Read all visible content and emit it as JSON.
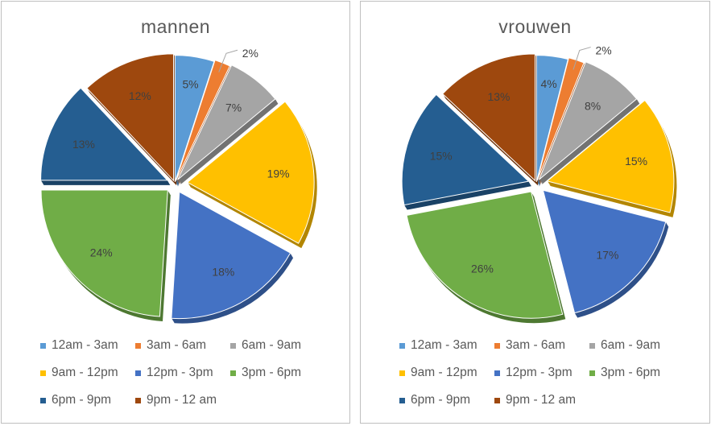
{
  "categories": [
    "12am - 3am",
    "3am - 6am",
    "6am - 9am",
    "9am - 12pm",
    "12pm - 3pm",
    "3pm - 6pm",
    "6pm - 9pm",
    "9pm - 12 am"
  ],
  "colors": [
    "#5b9bd5",
    "#ed7d31",
    "#a5a5a5",
    "#ffc000",
    "#4472c4",
    "#70ad47",
    "#255e91",
    "#9e480e"
  ],
  "shadow_colors": [
    "#3f6d96",
    "#a85722",
    "#737373",
    "#b38600",
    "#2f5089",
    "#4e7932",
    "#1a4266",
    "#6f330a"
  ],
  "chart_data": [
    {
      "type": "pie",
      "title": "mannen",
      "categories": [
        "12am - 3am",
        "3am - 6am",
        "6am - 9am",
        "9am - 12pm",
        "12pm - 3pm",
        "3pm - 6pm",
        "6pm - 9pm",
        "9pm - 12 am"
      ],
      "values": [
        5,
        2,
        7,
        19,
        18,
        24,
        13,
        12
      ],
      "labels": [
        "5%",
        "2%",
        "7%",
        "19%",
        "18%",
        "24%",
        "13%",
        "12%"
      ],
      "legend": "bottom",
      "style": "3d-exploded"
    },
    {
      "type": "pie",
      "title": "vrouwen",
      "categories": [
        "12am - 3am",
        "3am - 6am",
        "6am - 9am",
        "9am - 12pm",
        "12pm - 3pm",
        "3pm - 6pm",
        "6pm - 9pm",
        "9pm - 12 am"
      ],
      "values": [
        4,
        2,
        8,
        15,
        17,
        26,
        15,
        13
      ],
      "labels": [
        "4%",
        "2%",
        "8%",
        "15%",
        "17%",
        "26%",
        "15%",
        "13%"
      ],
      "legend": "bottom",
      "style": "3d-exploded"
    }
  ]
}
